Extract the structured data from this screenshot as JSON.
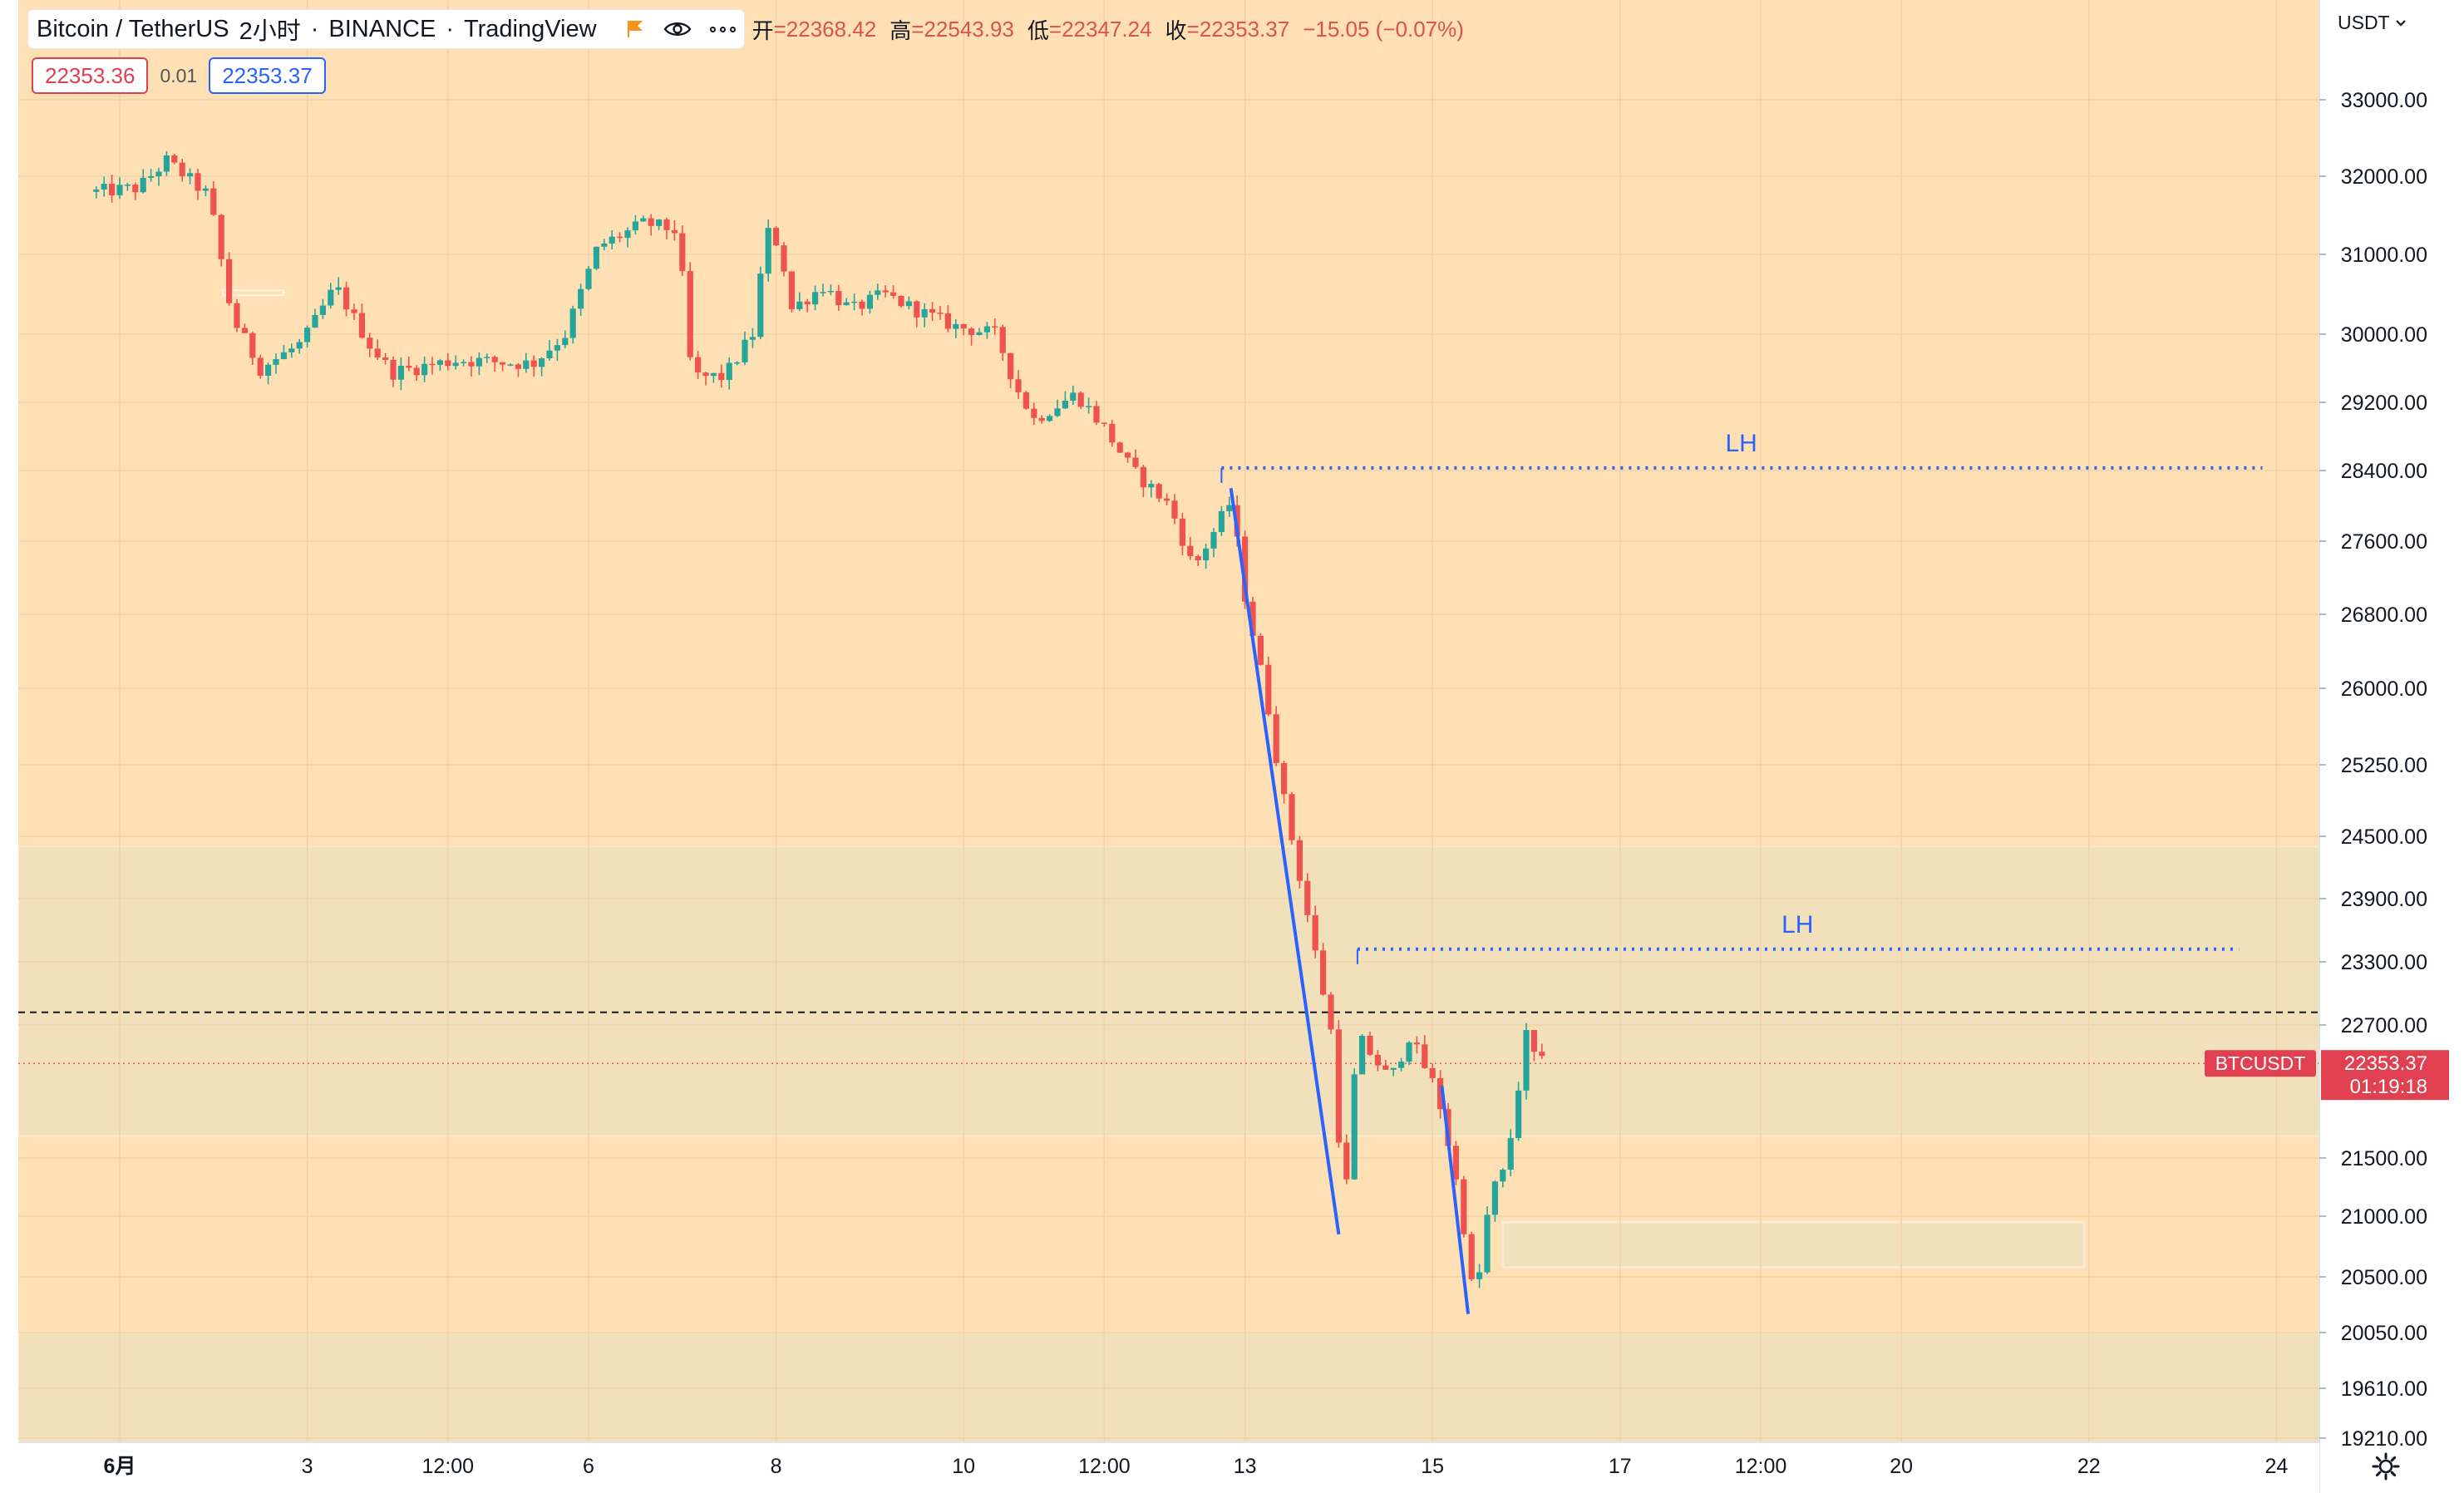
{
  "header": {
    "symbol": "Bitcoin / TetherUS",
    "interval": "2小时",
    "exchange": "BINANCE",
    "source": "TradingView",
    "ohlc": {
      "open_label": "开",
      "open": "=22368.42",
      "high_label": "高",
      "high": "=22543.93",
      "low_label": "低",
      "low": "=22347.24",
      "close_label": "收",
      "close": "=22353.37",
      "change": "−15.05 (−0.07%)"
    }
  },
  "quote": {
    "bid": "22353.36",
    "spread": "0.01",
    "ask": "22353.37"
  },
  "currency": "USDT",
  "price_label": {
    "ticker": "BTCUSDT",
    "price": "22353.37",
    "countdown": "01:19:18"
  },
  "colors": {
    "background": "#FFE0B5",
    "zone": "#F1E0BA",
    "bull": "#26A69A",
    "bear": "#EF5350",
    "trend": "#2962FF",
    "grid": "#F0D2A8"
  },
  "chart_data": {
    "type": "candlestick",
    "y_ticks": [
      33000,
      32000,
      31000,
      30000,
      29200,
      28400,
      27600,
      26800,
      26000,
      25250,
      24500,
      23900,
      23300,
      22700,
      21500,
      21000,
      20500,
      20050,
      19610,
      19210
    ],
    "y_tick_labels": [
      "33000.00",
      "32000.00",
      "31000.00",
      "30000.00",
      "29200.00",
      "28400.00",
      "27600.00",
      "26800.00",
      "26000.00",
      "25250.00",
      "24500.00",
      "23900.00",
      "23300.00",
      "22700.00",
      "21500.00",
      "21000.00",
      "20500.00",
      "20050.00",
      "19610.00",
      "19210.00"
    ],
    "x_ticks": [
      {
        "label": "6月",
        "day": 1.0,
        "bold": true
      },
      {
        "label": "3",
        "day": 3.0
      },
      {
        "label": "12:00",
        "day": 4.5
      },
      {
        "label": "6",
        "day": 6.0
      },
      {
        "label": "8",
        "day": 8.0
      },
      {
        "label": "10",
        "day": 10.0
      },
      {
        "label": "12:00",
        "day": 11.5
      },
      {
        "label": "13",
        "day": 13.0
      },
      {
        "label": "15",
        "day": 15.0
      },
      {
        "label": "17",
        "day": 17.0
      },
      {
        "label": "12:00",
        "day": 18.5
      },
      {
        "label": "20",
        "day": 20.0
      },
      {
        "label": "22",
        "day": 22.0
      },
      {
        "label": "24",
        "day": 24.0
      }
    ],
    "last_price": 22353.37,
    "dashed_level": 22820,
    "zones": [
      {
        "low": 21700,
        "high": 24400
      },
      {
        "low": 18500,
        "high": 20050
      }
    ],
    "small_box": {
      "day_start": 15.75,
      "day_end": 21.95,
      "low": 20580,
      "high": 20950
    },
    "small_rect": {
      "day_start": 2.1,
      "day_end": 2.75,
      "low": 30500,
      "high": 30550
    },
    "lh_levels": [
      {
        "label": "LH",
        "price": 28430,
        "day_start": 12.75,
        "day_end": 23.85
      },
      {
        "label": "LH",
        "price": 23420,
        "day_start": 14.2,
        "day_end": 23.6
      }
    ],
    "trend_lines": [
      [
        [
          12.85,
          28200
        ],
        [
          14.0,
          20850
        ]
      ],
      [
        [
          15.1,
          22150
        ],
        [
          15.38,
          20200
        ]
      ]
    ],
    "anchors": [
      {
        "day": 0.75,
        "price": 31800
      },
      {
        "day": 1.2,
        "price": 31850
      },
      {
        "day": 1.5,
        "price": 32200
      },
      {
        "day": 1.95,
        "price": 31750
      },
      {
        "day": 2.2,
        "price": 30200
      },
      {
        "day": 2.5,
        "price": 29600
      },
      {
        "day": 2.95,
        "price": 29900
      },
      {
        "day": 3.3,
        "price": 30600
      },
      {
        "day": 3.65,
        "price": 29900
      },
      {
        "day": 3.9,
        "price": 29550
      },
      {
        "day": 4.6,
        "price": 29700
      },
      {
        "day": 5.4,
        "price": 29650
      },
      {
        "day": 5.75,
        "price": 30000
      },
      {
        "day": 6.1,
        "price": 31100
      },
      {
        "day": 6.6,
        "price": 31400
      },
      {
        "day": 6.95,
        "price": 31300
      },
      {
        "day": 7.1,
        "price": 29500
      },
      {
        "day": 7.45,
        "price": 29500
      },
      {
        "day": 7.75,
        "price": 30000
      },
      {
        "day": 7.9,
        "price": 31300
      },
      {
        "day": 8.05,
        "price": 31100
      },
      {
        "day": 8.15,
        "price": 30300
      },
      {
        "day": 8.5,
        "price": 30600
      },
      {
        "day": 8.8,
        "price": 30300
      },
      {
        "day": 9.15,
        "price": 30500
      },
      {
        "day": 9.5,
        "price": 30300
      },
      {
        "day": 9.9,
        "price": 30100
      },
      {
        "day": 10.35,
        "price": 30000
      },
      {
        "day": 10.55,
        "price": 29400
      },
      {
        "day": 10.75,
        "price": 29000
      },
      {
        "day": 11.2,
        "price": 29300
      },
      {
        "day": 11.5,
        "price": 28900
      },
      {
        "day": 11.8,
        "price": 28400
      },
      {
        "day": 12.2,
        "price": 28000
      },
      {
        "day": 12.45,
        "price": 27300
      },
      {
        "day": 12.85,
        "price": 28050
      },
      {
        "day": 13.0,
        "price": 27000
      },
      {
        "day": 13.25,
        "price": 25800
      },
      {
        "day": 13.45,
        "price": 24700
      },
      {
        "day": 13.7,
        "price": 23600
      },
      {
        "day": 13.95,
        "price": 22500
      },
      {
        "day": 14.05,
        "price": 20900
      },
      {
        "day": 14.2,
        "price": 22600
      },
      {
        "day": 14.55,
        "price": 22200
      },
      {
        "day": 14.75,
        "price": 22600
      },
      {
        "day": 15.05,
        "price": 22100
      },
      {
        "day": 15.3,
        "price": 21100
      },
      {
        "day": 15.45,
        "price": 20250
      },
      {
        "day": 15.62,
        "price": 21200
      },
      {
        "day": 15.78,
        "price": 21400
      },
      {
        "day": 16.0,
        "price": 22600
      },
      {
        "day": 16.08,
        "price": 22430
      },
      {
        "day": 16.13,
        "price": 22368
      },
      {
        "day": 16.17,
        "price": 22353
      }
    ]
  }
}
